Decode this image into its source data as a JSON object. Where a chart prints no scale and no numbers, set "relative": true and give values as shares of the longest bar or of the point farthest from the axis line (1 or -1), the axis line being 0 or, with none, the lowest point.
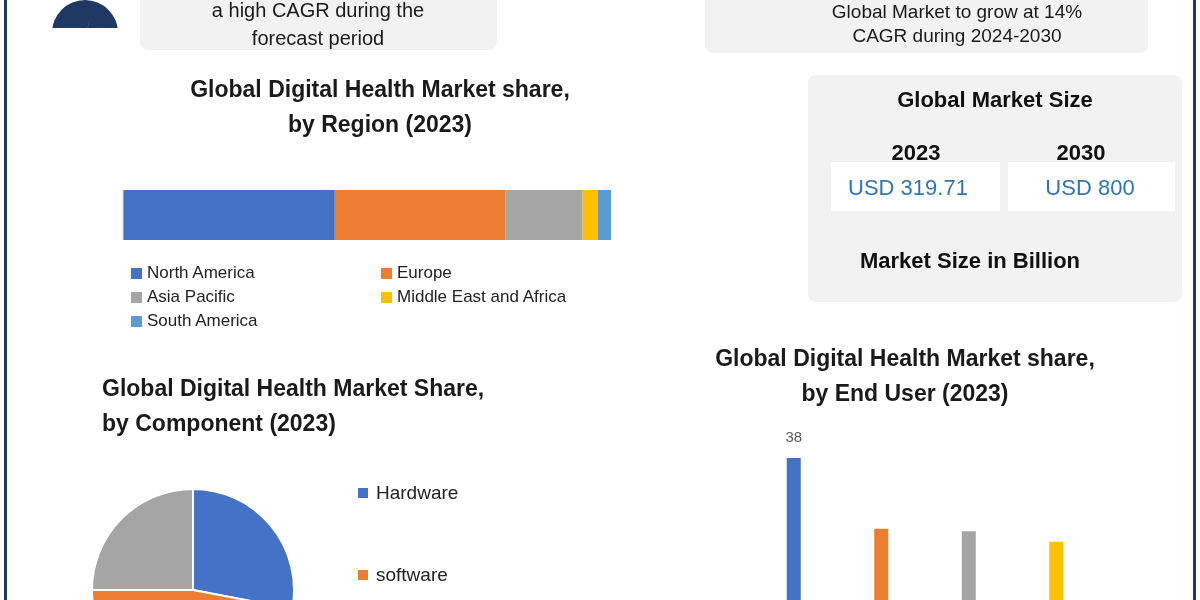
{
  "chart_data": [
    {
      "type": "other",
      "annotations": [
        "a high CAGR during the",
        "forecast period"
      ]
    },
    {
      "type": "other",
      "annotations": [
        "Global Market to grow at 14%",
        "CAGR during 2024-2030"
      ]
    },
    {
      "type": "bar",
      "title": "Global Digital Health Market share, by Region (2023)",
      "orientation": "horizontal",
      "stacked": true,
      "relative": true,
      "categories": [
        null
      ],
      "legend": "bottom",
      "series": [
        {
          "name": "North America",
          "color": "#4472c4",
          "values": [
            0.434
          ]
        },
        {
          "name": "Europe",
          "color": "#ed7d31",
          "values": [
            0.35
          ]
        },
        {
          "name": "Asia Pacific",
          "color": "#a5a5a5",
          "values": [
            0.158
          ]
        },
        {
          "name": "Middle East and Africa",
          "color": "#ffc000",
          "values": [
            0.031
          ]
        },
        {
          "name": "South America",
          "color": "#5b9bd5",
          "values": [
            0.027
          ]
        }
      ]
    },
    {
      "type": "other",
      "title": "Global Market Size",
      "annotations": [
        "2023",
        "USD 319.71",
        "2030",
        "USD 800",
        "Market Size in Billion"
      ]
    },
    {
      "type": "pie",
      "title": "Global Digital Health Market Share, by Component (2023)",
      "categories": [
        "Hardware",
        "software",
        null
      ],
      "values": [
        28,
        47,
        25
      ],
      "colors": [
        "#4472c4",
        "#ed7d31",
        "#a5a5a5"
      ],
      "legend": "right"
    },
    {
      "type": "bar",
      "title": "Global Digital Health Market share, by End User (2023)",
      "categories": [
        null,
        null,
        null,
        null
      ],
      "values": [
        38,
        24,
        23.5,
        21.4
      ],
      "value_labels": [
        "38",
        null,
        null,
        null
      ],
      "colors": [
        "#4472c4",
        "#ed7d31",
        "#a5a5a5",
        "#ffc000"
      ]
    }
  ]
}
